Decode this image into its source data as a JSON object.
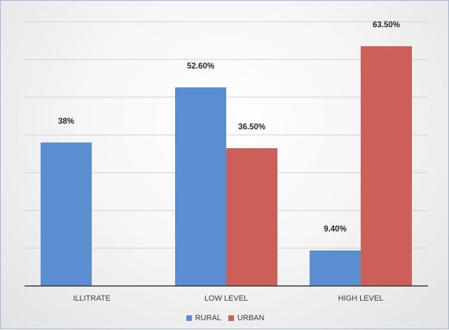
{
  "chart_data": {
    "type": "bar",
    "categories": [
      "ILLITRATE",
      "LOW LEVEL",
      "HIGH LEVEL"
    ],
    "series": [
      {
        "name": "RURAL",
        "values": [
          38,
          52.6,
          9.4
        ],
        "labels": [
          "38%",
          "52.60%",
          "9.40%"
        ],
        "color": "#5b8ed1"
      },
      {
        "name": "URBAN",
        "values": [
          null,
          36.5,
          63.5
        ],
        "labels": [
          "",
          "36.50%",
          "63.50%"
        ],
        "color": "#cd5f59"
      }
    ],
    "ylim": [
      0,
      70
    ],
    "ygrid_step": 10,
    "grid": true,
    "legend_position": "bottom"
  }
}
